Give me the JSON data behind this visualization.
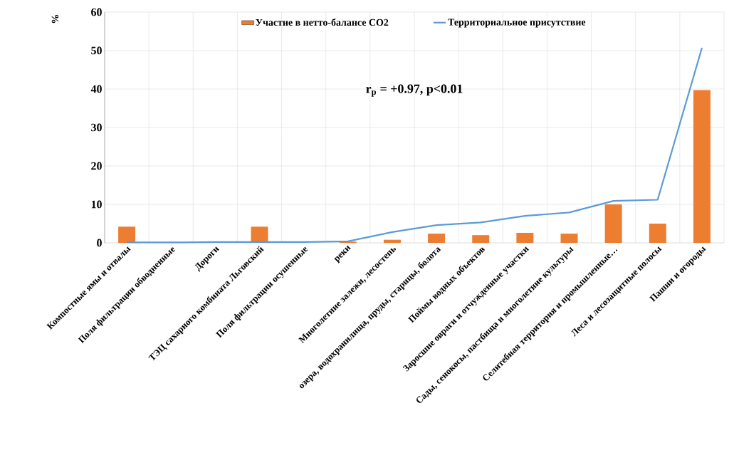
{
  "chart_data": {
    "type": "bar",
    "ylabel": "%",
    "categories": [
      "Компостные ямы и отвалы",
      "Поля фильтрации обводненные",
      "Дороги",
      "ТЭЦ сахарного комбината Льговский",
      "Поля фильтрации осушенные",
      "реки",
      "Многолетние залежи, лесостепь",
      "озера, водохранилища, пруды, старицы, болота",
      "Поймы водных объектов",
      "Заросшие овраги и отчужденные участки",
      "Сады, сенокосы, пастбища и многолетние культуры",
      "Селитебная территория и промышленные…",
      "Леса и лесозащитные полосы",
      "Пашни и огороды"
    ],
    "series": [
      {
        "name": "Участие в нетто-балансе CO2",
        "color": "#ed7d31",
        "values": [
          4.2,
          0,
          0,
          4.2,
          0,
          0.3,
          0.8,
          2.4,
          2.0,
          2.6,
          2.4,
          10.0,
          5.0,
          39.7
        ]
      },
      {
        "name": "Территориальное присутствие",
        "type": "line",
        "color": "#5b9bd5",
        "values": [
          0.1,
          0.1,
          0.2,
          0.2,
          0.2,
          0.4,
          2.8,
          4.6,
          5.3,
          7.0,
          7.9,
          10.9,
          11.2,
          50.7
        ]
      }
    ],
    "ylim": [
      0,
      60
    ],
    "yticks": [
      0,
      10,
      20,
      30,
      40,
      50,
      60
    ],
    "grid": true,
    "legend": "top",
    "annotations": [
      "r$_{p}$ = +0.97, p<0.01"
    ]
  }
}
